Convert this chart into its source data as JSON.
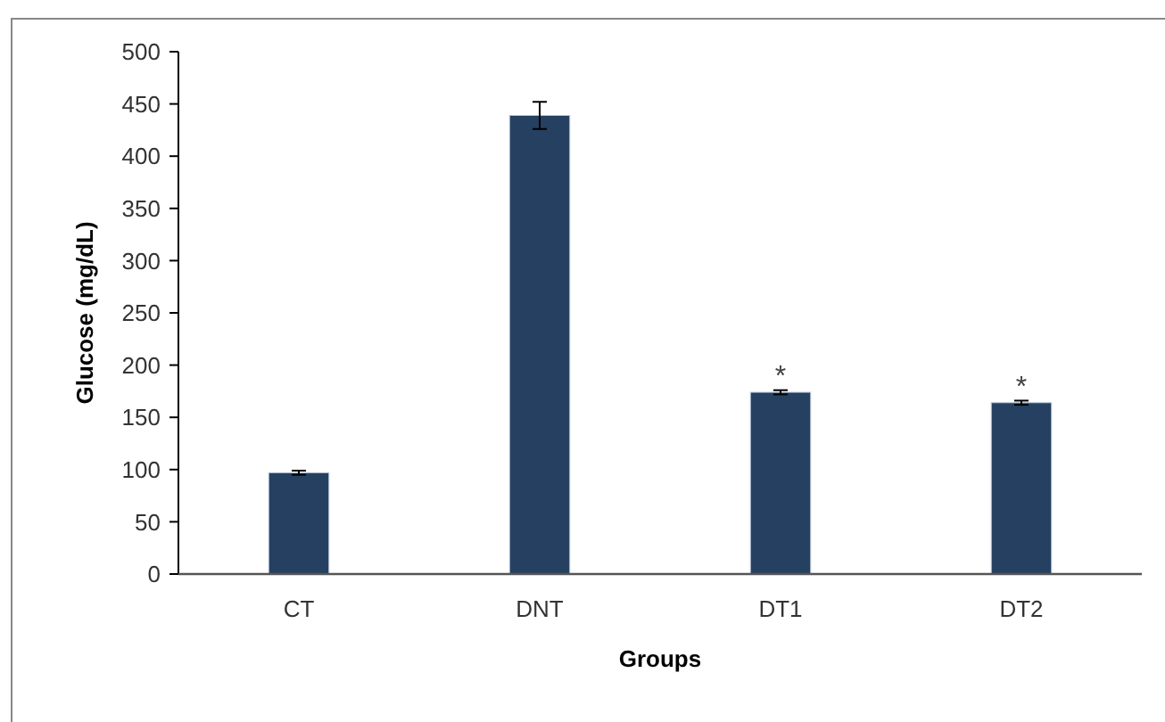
{
  "chart_data": {
    "type": "bar",
    "xlabel": "Groups",
    "ylabel": "Glucose (mg/dL)",
    "categories": [
      "CT",
      "DNT",
      "DT1",
      "DT2"
    ],
    "values": [
      97,
      439,
      174,
      164
    ],
    "errors": [
      2,
      13,
      2,
      2
    ],
    "color": "#264061",
    "ylim": [
      0,
      500
    ],
    "yticks": [
      0,
      50,
      100,
      150,
      200,
      250,
      300,
      350,
      400,
      450,
      500
    ],
    "grid": false,
    "annotations": [
      {
        "text": "*",
        "x": "DT1",
        "y": 174
      },
      {
        "text": "*",
        "x": "DT2",
        "y": 164
      }
    ]
  }
}
